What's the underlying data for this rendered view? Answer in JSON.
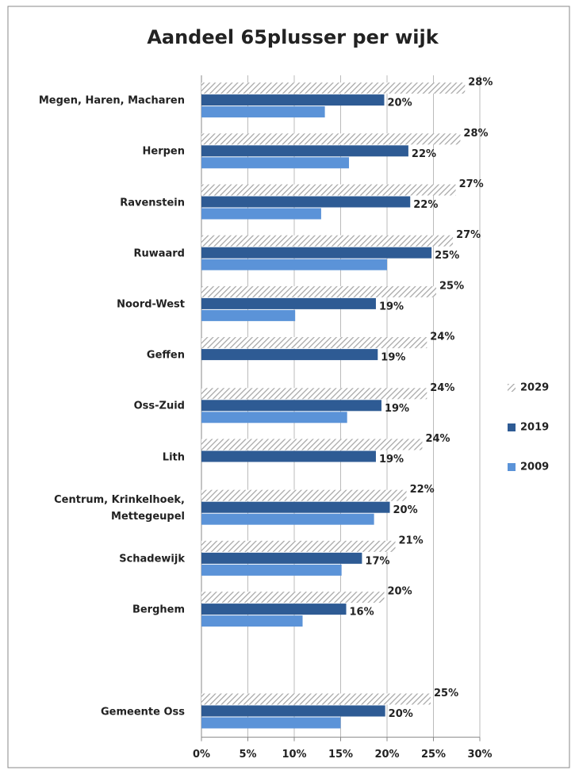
{
  "chart_data": {
    "type": "hbar",
    "title": "Aandeel 65plusser per wijk",
    "categories": [
      "Megen, Haren, Macharen",
      "Herpen",
      "Ravenstein",
      "Ruwaard",
      "Noord-West",
      "Geffen",
      "Oss-Zuid",
      "Lith",
      "Centrum, Krinkelhoek, Mettegeupel",
      "Schadewijk",
      "Berghem",
      null,
      "Gemeente Oss"
    ],
    "series": [
      {
        "name": "2029",
        "color": "#a6a6a6",
        "hatch": true,
        "values": [
          28.4,
          27.9,
          27.4,
          27.1,
          25.3,
          24.3,
          24.3,
          23.8,
          22.1,
          20.9,
          19.7,
          null,
          24.7
        ],
        "value_labels": [
          "28%",
          "28%",
          "27%",
          "27%",
          "25%",
          "24%",
          "24%",
          "24%",
          "22%",
          "21%",
          "20%",
          null,
          "25%"
        ]
      },
      {
        "name": "2019",
        "color": "#2e5b94",
        "hatch": false,
        "values": [
          19.7,
          22.3,
          22.5,
          24.8,
          18.8,
          19.0,
          19.4,
          18.8,
          20.3,
          17.3,
          15.6,
          null,
          19.8
        ],
        "value_labels": [
          "20%",
          "22%",
          "22%",
          "25%",
          "19%",
          "19%",
          "19%",
          "19%",
          "20%",
          "17%",
          "16%",
          null,
          "20%"
        ]
      },
      {
        "name": "2009",
        "color": "#5b93d8",
        "hatch": false,
        "values": [
          13.3,
          15.9,
          12.9,
          20.0,
          10.1,
          null,
          15.7,
          null,
          18.6,
          15.1,
          10.9,
          null,
          15.0
        ]
      }
    ],
    "xlim": [
      0,
      30
    ],
    "xticks": [
      {
        "value": 0,
        "label": "0%"
      },
      {
        "value": 5,
        "label": "5%"
      },
      {
        "value": 10,
        "label": "10%"
      },
      {
        "value": 15,
        "label": "15%"
      },
      {
        "value": 20,
        "label": "20%"
      },
      {
        "value": 25,
        "label": "25%"
      },
      {
        "value": 30,
        "label": "30%"
      }
    ],
    "grid": true,
    "legend": "right"
  }
}
